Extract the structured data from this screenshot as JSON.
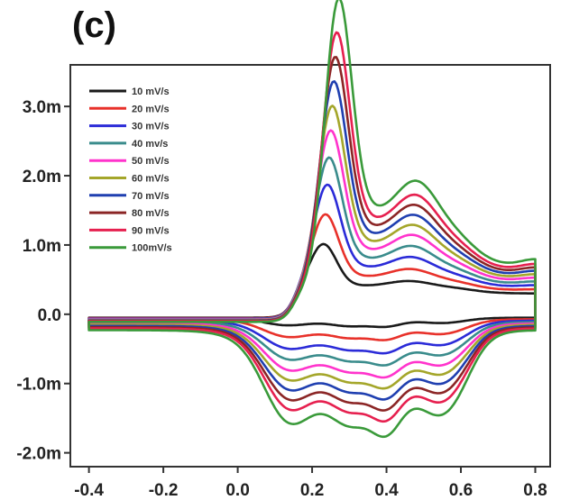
{
  "panel_label": "(c)",
  "chart_data": {
    "type": "line",
    "title": "",
    "xlabel": "",
    "ylabel": "",
    "xlim": [
      -0.45,
      0.84
    ],
    "ylim": [
      -2.2,
      3.6
    ],
    "x_ticks": [
      {
        "v": -0.4,
        "label": "-0.4"
      },
      {
        "v": -0.2,
        "label": "-0.2"
      },
      {
        "v": 0.0,
        "label": "0.0"
      },
      {
        "v": 0.2,
        "label": "0.2"
      },
      {
        "v": 0.4,
        "label": "0.4"
      },
      {
        "v": 0.6,
        "label": "0.6"
      },
      {
        "v": 0.8,
        "label": "0.8"
      }
    ],
    "y_ticks": [
      {
        "v": 3.0,
        "label": "3.0m"
      },
      {
        "v": 2.0,
        "label": "2.0m"
      },
      {
        "v": 1.0,
        "label": "1.0m"
      },
      {
        "v": 0.0,
        "label": "0.0"
      },
      {
        "v": -1.0,
        "label": "-1.0m"
      },
      {
        "v": -2.0,
        "label": "-2.0m"
      }
    ],
    "legend_position": "top-left",
    "series": [
      {
        "name": "10 mV/s",
        "color": "#1a1a1a",
        "k": 0.0
      },
      {
        "name": "20 mV/s",
        "color": "#e8312a",
        "k": 0.12
      },
      {
        "name": "30 mV/s",
        "color": "#2b2bd8",
        "k": 0.24
      },
      {
        "name": "40 mv/s",
        "color": "#3a8c8c",
        "k": 0.35
      },
      {
        "name": "50 mV/s",
        "color": "#ff33cc",
        "k": 0.46
      },
      {
        "name": "60 mV/s",
        "color": "#a4a62a",
        "k": 0.56
      },
      {
        "name": "70 mV/s",
        "color": "#1f3fb0",
        "k": 0.66
      },
      {
        "name": "80 mV/s",
        "color": "#8b2525",
        "k": 0.76
      },
      {
        "name": "90 mV/s",
        "color": "#e6204f",
        "k": 0.86
      },
      {
        "name": "100mV/s",
        "color": "#3a9a3a",
        "k": 1.0
      }
    ]
  }
}
